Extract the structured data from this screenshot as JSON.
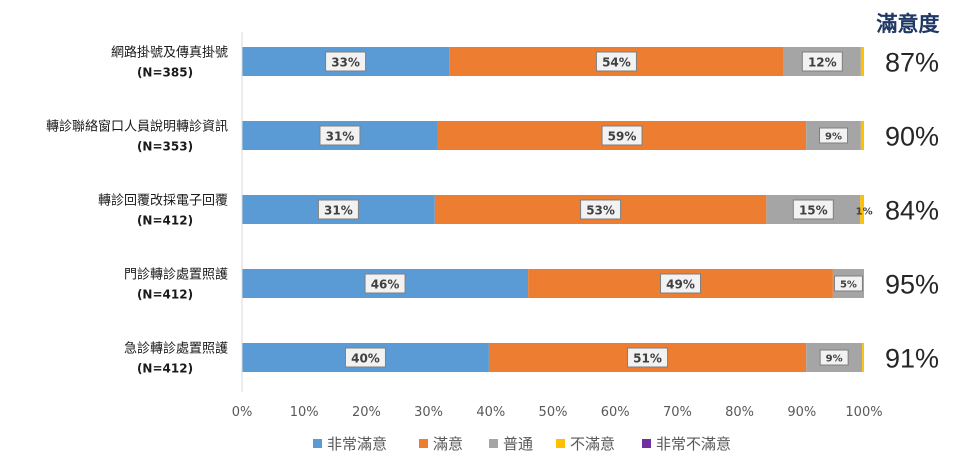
{
  "chart_data": {
    "type": "bar",
    "orientation": "horizontal",
    "stacked": "percent",
    "categories": [
      {
        "name": "網路掛號及傳真掛號",
        "n": "(N=385)"
      },
      {
        "name": "轉診聯絡窗口人員說明轉診資訊",
        "n": "(N=353)"
      },
      {
        "name": "轉診回覆改採電子回覆",
        "n": "(N=412)"
      },
      {
        "name": "門診轉診處置照護",
        "n": "(N=412)"
      },
      {
        "name": "急診轉診處置照護",
        "n": "(N=412)"
      }
    ],
    "series": [
      {
        "name": "非常滿意",
        "color": "#5b9bd5",
        "values": [
          33.3,
          31.5,
          31,
          46,
          39.7
        ],
        "labels": [
          "33%",
          "31%",
          "31%",
          "46%",
          "40%"
        ]
      },
      {
        "name": "滿意",
        "color": "#ed7d31",
        "values": [
          53.8,
          59.2,
          53.3,
          49,
          51
        ],
        "labels": [
          "54%",
          "59%",
          "53%",
          "49%",
          "51%"
        ]
      },
      {
        "name": "普通",
        "color": "#a5a5a5",
        "values": [
          12.4,
          8.8,
          15.1,
          5,
          9
        ],
        "labels": [
          "12%",
          "9%",
          "15%",
          "5%",
          "9%"
        ]
      },
      {
        "name": "不滿意",
        "color": "#ffc000",
        "values": [
          0.5,
          0.5,
          0.6,
          0,
          0.3
        ],
        "labels": [
          "",
          "",
          "1%",
          "",
          ""
        ]
      },
      {
        "name": "非常不滿意",
        "color": "#7030a0",
        "values": [
          0,
          0,
          0,
          0,
          0
        ],
        "labels": [
          "",
          "",
          "",
          "",
          ""
        ]
      }
    ],
    "xlim": [
      0,
      100
    ],
    "xticks": [
      "0%",
      "10%",
      "20%",
      "30%",
      "40%",
      "50%",
      "60%",
      "70%",
      "80%",
      "90%",
      "100%"
    ],
    "grid": false,
    "legend_position": "bottom",
    "satisfaction": {
      "title": "滿意度",
      "values": [
        "87%",
        "90%",
        "84%",
        "95%",
        "91%"
      ]
    }
  }
}
